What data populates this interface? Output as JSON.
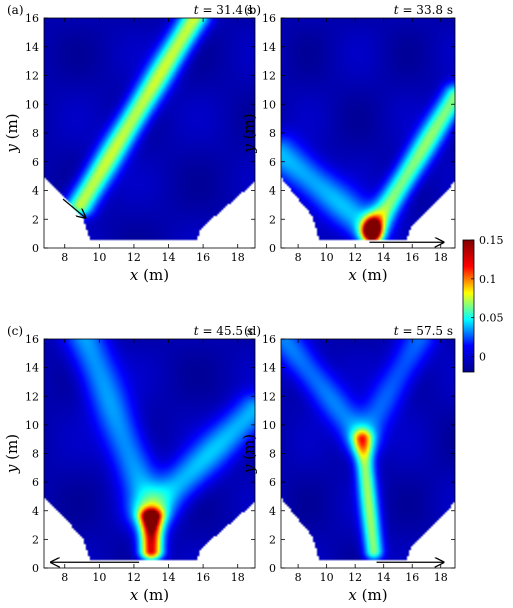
{
  "figure": {
    "colorbar": {
      "ticks": [
        "0.15",
        "0.1",
        "0.05",
        "0"
      ],
      "values": [
        0.15,
        0.1,
        0.05,
        0
      ],
      "range": [
        -0.02,
        0.15
      ],
      "colormap": "jet",
      "colors": [
        "#00008f",
        "#0000ff",
        "#00ffff",
        "#ffff00",
        "#ff0000",
        "#800000"
      ]
    },
    "axes": {
      "xlabel_var": "x",
      "xlabel_unit": "(m)",
      "ylabel_var": "y",
      "ylabel_unit": "(m)",
      "xticks": [
        "8",
        "10",
        "12",
        "14",
        "16",
        "18"
      ],
      "yticks": [
        "0",
        "2",
        "4",
        "6",
        "8",
        "10",
        "12",
        "14",
        "16"
      ],
      "xlim": [
        6.8,
        19.0
      ],
      "ylim": [
        0,
        16
      ]
    }
  },
  "chart_data": [
    {
      "type": "heatmap",
      "panel": "(a)",
      "time_label": "t",
      "time_value": "= 31.4 s",
      "xlim": [
        6.8,
        19.0
      ],
      "ylim": [
        0,
        16
      ],
      "arrow": {
        "from": [
          7.9,
          3.4
        ],
        "to": [
          9.2,
          2.1
        ]
      },
      "features": [
        {
          "kind": "line",
          "x1": 8.9,
          "y1": 3.0,
          "x2": 15.5,
          "y2": 16.0,
          "peak": 0.09,
          "width": 0.55
        }
      ]
    },
    {
      "type": "heatmap",
      "panel": "(b)",
      "time_label": "t",
      "time_value": "= 33.8 s",
      "xlim": [
        6.8,
        19.0
      ],
      "ylim": [
        0,
        16
      ],
      "arrow": {
        "from": [
          13.0,
          0.4
        ],
        "to": [
          18.2,
          0.4
        ]
      },
      "features": [
        {
          "kind": "line",
          "x1": 13.2,
          "y1": 1.2,
          "x2": 19.0,
          "y2": 10.5,
          "peak": 0.08,
          "width": 0.6
        },
        {
          "kind": "line",
          "x1": 12.8,
          "y1": 1.5,
          "x2": 6.8,
          "y2": 6.5,
          "peak": 0.045,
          "width": 0.9
        },
        {
          "kind": "blob",
          "x": 13.2,
          "y": 1.2,
          "peak": 0.15,
          "sx": 0.45,
          "sy": 0.6
        }
      ]
    },
    {
      "type": "heatmap",
      "panel": "(c)",
      "time_label": "t",
      "time_value": "= 45.5 s",
      "xlim": [
        6.8,
        19.0
      ],
      "ylim": [
        0,
        16
      ],
      "arrow": {
        "from": [
          12.3,
          0.4
        ],
        "to": [
          7.2,
          0.4
        ]
      },
      "features": [
        {
          "kind": "line",
          "x1": 13.0,
          "y1": 1.2,
          "x2": 13.0,
          "y2": 3.5,
          "peak": 0.15,
          "width": 0.45
        },
        {
          "kind": "line",
          "x1": 13.0,
          "y1": 4.0,
          "x2": 19.0,
          "y2": 11.0,
          "peak": 0.045,
          "width": 0.8
        },
        {
          "kind": "line",
          "x1": 13.0,
          "y1": 4.0,
          "x2": 9.2,
          "y2": 16.0,
          "peak": 0.04,
          "width": 0.8
        }
      ]
    },
    {
      "type": "heatmap",
      "panel": "(d)",
      "time_label": "t",
      "time_value": "= 57.5 s",
      "xlim": [
        6.8,
        19.0
      ],
      "ylim": [
        0,
        16
      ],
      "arrow": {
        "from": [
          13.5,
          0.4
        ],
        "to": [
          18.2,
          0.4
        ]
      },
      "features": [
        {
          "kind": "line",
          "x1": 13.3,
          "y1": 1.2,
          "x2": 12.5,
          "y2": 9.0,
          "peak": 0.08,
          "width": 0.45
        },
        {
          "kind": "line",
          "x1": 12.5,
          "y1": 9.0,
          "x2": 7.0,
          "y2": 16.0,
          "peak": 0.035,
          "width": 0.8
        },
        {
          "kind": "line",
          "x1": 12.5,
          "y1": 9.0,
          "x2": 16.5,
          "y2": 16.0,
          "peak": 0.03,
          "width": 0.8
        }
      ]
    }
  ]
}
